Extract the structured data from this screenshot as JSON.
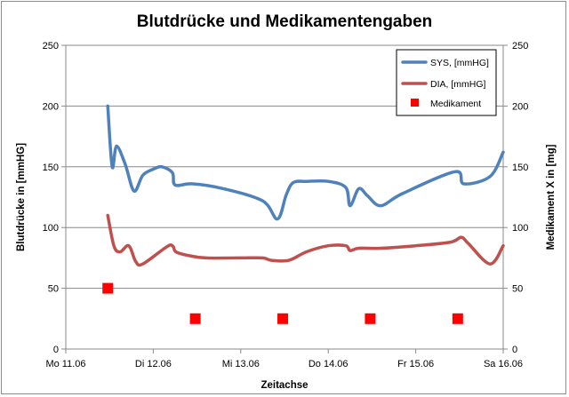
{
  "chart_data": {
    "type": "line",
    "title": "Blutdrücke und Medikamentengaben",
    "xlabel": "Zeitachse",
    "ylabel": "Blutdrücke in [mmHG]",
    "y2label": "Medikament X in [mg]",
    "ylim": [
      0,
      250
    ],
    "y2lim": [
      0,
      250
    ],
    "y_ticks": [
      0,
      50,
      100,
      150,
      200,
      250
    ],
    "y2_ticks": [
      0,
      50,
      100,
      150,
      200,
      250
    ],
    "xlim": [
      0,
      5
    ],
    "x_ticks": [
      {
        "value": 0,
        "label": "Mo 11.06"
      },
      {
        "value": 1,
        "label": "Di 12.06"
      },
      {
        "value": 2,
        "label": "Mi 13.06"
      },
      {
        "value": 3,
        "label": "Do 14.06"
      },
      {
        "value": 4,
        "label": "Fr 15.06"
      },
      {
        "value": 5,
        "label": "Sa 16.06"
      }
    ],
    "grid": "horizontal",
    "legend_position": "top-right",
    "series": [
      {
        "name": "SYS, [mmHG]",
        "kind": "line",
        "axis": "left",
        "color": "#4f81bd",
        "x": [
          0.48,
          0.53,
          0.58,
          0.68,
          0.78,
          0.88,
          1.0,
          1.1,
          1.22,
          1.25,
          1.45,
          1.8,
          2.25,
          2.42,
          2.52,
          2.6,
          2.75,
          3.0,
          3.2,
          3.25,
          3.35,
          3.45,
          3.6,
          3.85,
          4.45,
          4.55,
          4.85,
          5.0
        ],
        "values": [
          200,
          150,
          167,
          152,
          130,
          143,
          148,
          150,
          145,
          135,
          136,
          132,
          122,
          107,
          127,
          137,
          138,
          138,
          133,
          118,
          132,
          126,
          118,
          128,
          146,
          136,
          142,
          162
        ]
      },
      {
        "name": "DIA, [mmHG]",
        "kind": "line",
        "axis": "left",
        "color": "#c0504d",
        "x": [
          0.48,
          0.55,
          0.62,
          0.72,
          0.8,
          0.88,
          1.15,
          1.22,
          1.26,
          1.4,
          1.6,
          2.0,
          2.25,
          2.35,
          2.55,
          2.75,
          3.0,
          3.2,
          3.25,
          3.35,
          3.6,
          4.0,
          4.4,
          4.52,
          4.6,
          4.85,
          5.0
        ],
        "values": [
          110,
          85,
          80,
          85,
          72,
          70,
          84,
          85,
          80,
          77,
          75,
          75,
          75,
          73,
          73,
          80,
          85,
          85,
          81,
          83,
          83,
          85,
          88,
          92,
          87,
          70,
          85
        ]
      },
      {
        "name": "Medikament",
        "kind": "scatter",
        "axis": "right",
        "color": "#ff0000",
        "x": [
          0.48,
          1.48,
          2.48,
          3.48,
          4.48
        ],
        "values": [
          50,
          25,
          25,
          25,
          25
        ]
      }
    ]
  }
}
